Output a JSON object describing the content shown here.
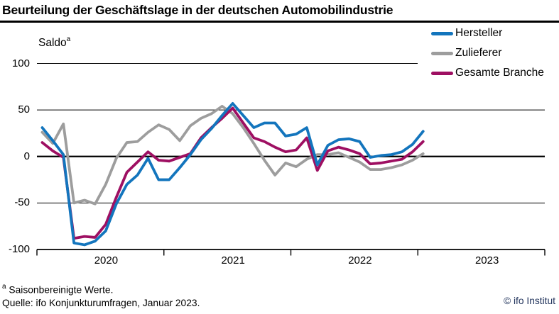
{
  "header": {
    "title": "Beurteilung der Geschäftslage in der deutschen Automobilindustrie"
  },
  "chart": {
    "saldo_label": "Saldo",
    "saldo_superscript": "a",
    "y_tick_labels": [
      "100",
      "50",
      "0",
      "-50",
      "-100"
    ],
    "x_tick_labels": [
      "2020",
      "2021",
      "2022",
      "2023"
    ]
  },
  "legend": {
    "items": [
      {
        "label": "Hersteller",
        "color": "#1375bd"
      },
      {
        "label": "Zulieferer",
        "color": "#9d9d9d"
      },
      {
        "label": "Gesamte Branche",
        "color": "#9e0f62"
      }
    ]
  },
  "footer": {
    "footnote_superscript": "a",
    "footnote": "Saisonbereinigte Werte.",
    "source": "Quelle: ifo Konjunkturumfragen, Januar 2023.",
    "copyright": "© ifo Institut",
    "copyright_color": "#24365e"
  },
  "chart_data": {
    "type": "line",
    "title": "Beurteilung der Geschäftslage in der deutschen Automobilindustrie",
    "ylabel": "Saldo (saisonbereinigte Werte)",
    "ylim": [
      -100,
      100
    ],
    "yticks": [
      100,
      50,
      0,
      -50,
      -100
    ],
    "xtick_years": [
      "2020",
      "2021",
      "2022",
      "2023"
    ],
    "grid": "horizontal",
    "legend_position": "top-right",
    "x": [
      "2020-01",
      "2020-02",
      "2020-03",
      "2020-04",
      "2020-05",
      "2020-06",
      "2020-07",
      "2020-08",
      "2020-09",
      "2020-10",
      "2020-11",
      "2020-12",
      "2021-01",
      "2021-02",
      "2021-03",
      "2021-04",
      "2021-05",
      "2021-06",
      "2021-07",
      "2021-08",
      "2021-09",
      "2021-10",
      "2021-11",
      "2021-12",
      "2022-01",
      "2022-02",
      "2022-03",
      "2022-04",
      "2022-05",
      "2022-06",
      "2022-07",
      "2022-08",
      "2022-09",
      "2022-10",
      "2022-11",
      "2022-12",
      "2023-01"
    ],
    "series": [
      {
        "name": "Hersteller",
        "color": "#1375bd",
        "values": [
          31,
          17,
          2,
          -93,
          -95,
          -91,
          -80,
          -51,
          -30,
          -20,
          -2,
          -25,
          -25,
          -12,
          2,
          18,
          30,
          44,
          57,
          44,
          31,
          36,
          36,
          22,
          24,
          31,
          -9,
          12,
          18,
          19,
          16,
          -1,
          1,
          2,
          5,
          13,
          27
        ]
      },
      {
        "name": "Zulieferer",
        "color": "#9d9d9d",
        "values": [
          26,
          14,
          35,
          -50,
          -47,
          -51,
          -30,
          -2,
          15,
          16,
          26,
          34,
          29,
          17,
          33,
          41,
          46,
          54,
          46,
          31,
          14,
          -4,
          -20,
          -7,
          -11,
          -3,
          2,
          2,
          4,
          -1,
          -6,
          -14,
          -14,
          -12,
          -9,
          -4,
          3
        ]
      },
      {
        "name": "Gesamte Branche",
        "color": "#9e0f62",
        "values": [
          15,
          6,
          -1,
          -88,
          -86,
          -87,
          -73,
          -44,
          -17,
          -6,
          5,
          -4,
          -5,
          -1,
          3,
          20,
          31,
          41,
          52,
          36,
          20,
          16,
          10,
          5,
          7,
          20,
          -15,
          6,
          10,
          7,
          3,
          -8,
          -7,
          -5,
          -3,
          5,
          16
        ]
      }
    ]
  }
}
